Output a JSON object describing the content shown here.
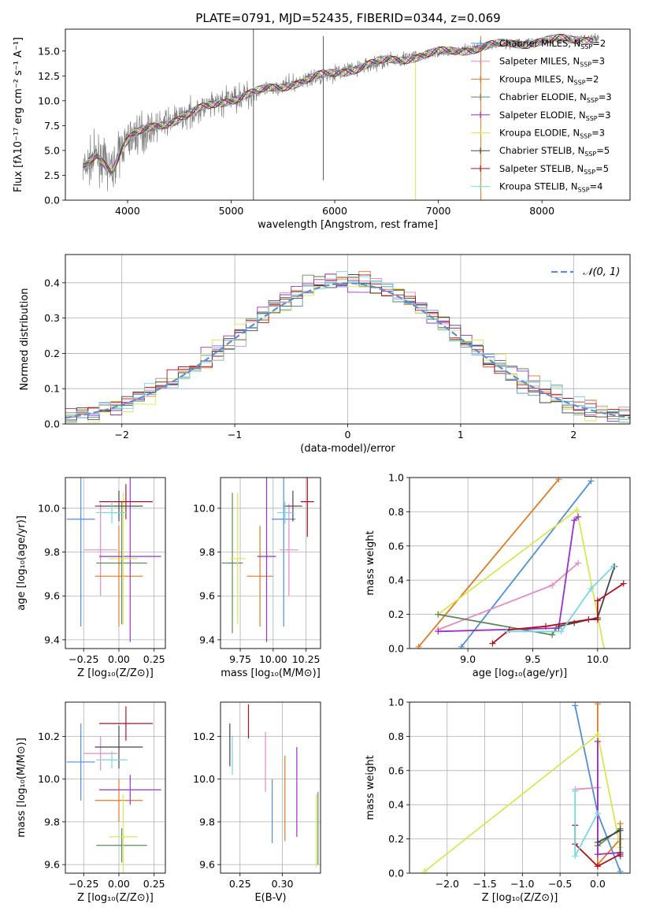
{
  "chart_data": [
    {
      "type": "line",
      "title": "PLATE=0791, MJD=52435, FIBERID=0344, z=0.069",
      "xlabel": "wavelength [Angstrom, rest frame]",
      "ylabel": "Flux [fλ10⁻¹⁷ erg cm⁻² s⁻¹ A⁻¹]",
      "xlim": [
        3400,
        8850
      ],
      "ylim": [
        0,
        17.2
      ],
      "xticks": [
        "4000",
        "5000",
        "6000",
        "7000",
        "8000"
      ],
      "yticks": [
        "0.0",
        "2.5",
        "5.0",
        "7.5",
        "10.0",
        "12.5",
        "15.0"
      ],
      "spectrum_anchors": {
        "x": [
          3550,
          3700,
          3850,
          3950,
          4050,
          4300,
          4600,
          5000,
          5500,
          6000,
          6500,
          7000,
          7500,
          8000,
          8500
        ],
        "y": [
          2.8,
          4.5,
          3.0,
          5.5,
          6.5,
          7.5,
          8.7,
          10.2,
          11.5,
          12.8,
          14.0,
          14.8,
          15.5,
          16.0,
          16.3
        ]
      },
      "legend": [
        {
          "main": "Chabrier MILES, N",
          "sub": "SSP",
          "tail": "=2",
          "color": "#4f8fd6"
        },
        {
          "main": "Salpeter MILES, N",
          "sub": "SSP",
          "tail": "=3",
          "color": "#e68ac3"
        },
        {
          "main": "Kroupa MILES, N",
          "sub": "SSP",
          "tail": "=2",
          "color": "#e07a22"
        },
        {
          "main": "Chabrier ELODIE, N",
          "sub": "SSP",
          "tail": "=3",
          "color": "#5a8a5a"
        },
        {
          "main": "Salpeter ELODIE, N",
          "sub": "SSP",
          "tail": "=3",
          "color": "#9b30c8"
        },
        {
          "main": "Kroupa ELODIE, N",
          "sub": "SSP",
          "tail": "=3",
          "color": "#d8e850"
        },
        {
          "main": "Chabrier STELIB, N",
          "sub": "SSP",
          "tail": "=5",
          "color": "#444444"
        },
        {
          "main": "Salpeter STELIB, N",
          "sub": "SSP",
          "tail": "=5",
          "color": "#b01020"
        },
        {
          "main": "Kroupa STELIB, N",
          "sub": "SSP",
          "tail": "=4",
          "color": "#78d8e0"
        }
      ]
    },
    {
      "type": "line",
      "xlabel": "(data-model)/error",
      "ylabel": "Normed distribution",
      "xlim": [
        -2.5,
        2.5
      ],
      "ylim": [
        0,
        0.48
      ],
      "xticks": [
        "−2",
        "−1",
        "0",
        "1",
        "2"
      ],
      "yticks": [
        "0.0",
        "0.1",
        "0.2",
        "0.3",
        "0.4"
      ],
      "legend_label": "𝒩(0, 1)",
      "gaussian_color": "#5b8fd4",
      "series_colors": [
        "#4f8fd6",
        "#e68ac3",
        "#e07a22",
        "#5a8a5a",
        "#9b30c8",
        "#d8e850",
        "#444444",
        "#b01020",
        "#78d8e0"
      ]
    },
    {
      "type": "scatter",
      "xlabel": "Z [log₁₀(Z/Z⊙)]",
      "ylabel": "age  [log₁₀(age/yr)]",
      "xlim": [
        -0.38,
        0.33
      ],
      "ylim": [
        9.36,
        10.14
      ],
      "xticks": [
        "−0.25",
        "0.00",
        "0.25"
      ],
      "yticks": [
        "9.4",
        "9.6",
        "9.8",
        "10.0"
      ],
      "points": [
        {
          "x": -0.27,
          "y": 9.95,
          "xerr": 0.1,
          "yerr": 0.49,
          "color": "#4f8fd6"
        },
        {
          "x": -0.13,
          "y": 9.81,
          "xerr": 0.12,
          "yerr": 0.21,
          "color": "#e68ac3"
        },
        {
          "x": 0.0,
          "y": 9.69,
          "xerr": 0.17,
          "yerr": 0.23,
          "color": "#e07a22"
        },
        {
          "x": 0.02,
          "y": 9.75,
          "xerr": 0.18,
          "yerr": 0.28,
          "color": "#5a8a5a"
        },
        {
          "x": 0.08,
          "y": 9.78,
          "xerr": 0.22,
          "yerr": 0.39,
          "color": "#9b30c8"
        },
        {
          "x": 0.03,
          "y": 9.77,
          "xerr": 0.1,
          "yerr": 0.3,
          "color": "#d8e850"
        },
        {
          "x": 0.0,
          "y": 10.01,
          "xerr": 0.17,
          "yerr": 0.07,
          "color": "#444444"
        },
        {
          "x": 0.05,
          "y": 10.03,
          "xerr": 0.19,
          "yerr": 0.08,
          "color": "#b01020"
        },
        {
          "x": -0.05,
          "y": 9.98,
          "xerr": 0.11,
          "yerr": 0.05,
          "color": "#78d8e0"
        }
      ]
    },
    {
      "type": "scatter",
      "xlabel": "mass [log₁₀(M/M⊙)]",
      "ylabel": "",
      "xlim": [
        9.6,
        10.36
      ],
      "ylim": [
        9.36,
        10.14
      ],
      "xticks": [
        "9.75",
        "10.00",
        "10.25"
      ],
      "yticks": [
        "9.4",
        "9.6",
        "9.8",
        "10.0"
      ],
      "points": [
        {
          "x": 10.08,
          "y": 9.95,
          "xerr": 0.09,
          "yerr": 0.49,
          "color": "#4f8fd6"
        },
        {
          "x": 10.12,
          "y": 9.81,
          "xerr": 0.07,
          "yerr": 0.21,
          "color": "#e68ac3"
        },
        {
          "x": 9.9,
          "y": 9.69,
          "xerr": 0.1,
          "yerr": 0.23,
          "color": "#e07a22"
        },
        {
          "x": 9.69,
          "y": 9.75,
          "xerr": 0.08,
          "yerr": 0.32,
          "color": "#5a8a5a"
        },
        {
          "x": 9.95,
          "y": 9.78,
          "xerr": 0.07,
          "yerr": 0.39,
          "color": "#9b30c8"
        },
        {
          "x": 9.73,
          "y": 9.77,
          "xerr": 0.06,
          "yerr": 0.3,
          "color": "#d8e850"
        },
        {
          "x": 10.15,
          "y": 10.01,
          "xerr": 0.07,
          "yerr": 0.07,
          "color": "#444444"
        },
        {
          "x": 10.26,
          "y": 10.03,
          "xerr": 0.05,
          "yerr": 0.16,
          "color": "#b01020"
        },
        {
          "x": 10.09,
          "y": 9.98,
          "xerr": 0.06,
          "yerr": 0.05,
          "color": "#78d8e0"
        }
      ]
    },
    {
      "type": "line",
      "xlabel": "age  [log₁₀(age/yr)]",
      "ylabel": "mass weight",
      "xlim": [
        8.55,
        10.25
      ],
      "ylim": [
        0,
        1
      ],
      "xticks": [
        "9.0",
        "9.5",
        "10.0"
      ],
      "yticks": [
        "0.0",
        "0.2",
        "0.4",
        "0.6",
        "0.8",
        "1.0"
      ],
      "series": [
        {
          "color": "#e07a22",
          "x": [
            8.62,
            9.7
          ],
          "y": [
            0.01,
            0.99
          ]
        },
        {
          "color": "#4f8fd6",
          "x": [
            8.95,
            9.95
          ],
          "y": [
            0.01,
            0.98
          ]
        },
        {
          "color": "#d8e850",
          "x": [
            8.77,
            9.84,
            10.05
          ],
          "y": [
            0.2,
            0.81,
            0.0
          ]
        },
        {
          "color": "#e68ac3",
          "x": [
            8.77,
            9.65,
            9.85
          ],
          "y": [
            0.11,
            0.37,
            0.5
          ]
        },
        {
          "color": "#5a8a5a",
          "x": [
            8.77,
            9.65,
            9.68
          ],
          "y": [
            0.2,
            0.08,
            0.12
          ]
        },
        {
          "color": "#9b30c8",
          "x": [
            8.77,
            9.7,
            9.82,
            9.85
          ],
          "y": [
            0.1,
            0.12,
            0.75,
            0.77
          ]
        },
        {
          "color": "#444444",
          "x": [
            9.7,
            9.82,
            10.0,
            10.13
          ],
          "y": [
            0.13,
            0.15,
            0.18,
            0.48
          ]
        },
        {
          "color": "#b01020",
          "x": [
            9.19,
            9.32,
            9.6,
            9.93,
            10.0,
            10.0,
            10.2
          ],
          "y": [
            0.03,
            0.11,
            0.13,
            0.17,
            0.17,
            0.28,
            0.38
          ]
        },
        {
          "color": "#78d8e0",
          "x": [
            9.3,
            9.72,
            9.95,
            10.12
          ],
          "y": [
            0.1,
            0.1,
            0.35,
            0.48
          ]
        }
      ]
    },
    {
      "type": "scatter",
      "xlabel": "Z [log₁₀(Z/Z⊙)]",
      "ylabel": "mass [log₁₀(M/M⊙)]",
      "xlim": [
        -0.38,
        0.33
      ],
      "ylim": [
        9.56,
        10.36
      ],
      "xticks": [
        "−0.25",
        "0.00",
        "0.25"
      ],
      "yticks": [
        "9.6",
        "9.8",
        "10.0",
        "10.2"
      ],
      "points": [
        {
          "x": -0.27,
          "y": 10.08,
          "xerr": 0.1,
          "yerr": 0.18,
          "color": "#4f8fd6"
        },
        {
          "x": -0.13,
          "y": 10.12,
          "xerr": 0.12,
          "yerr": 0.08,
          "color": "#e68ac3"
        },
        {
          "x": 0.0,
          "y": 9.9,
          "xerr": 0.17,
          "yerr": 0.1,
          "color": "#e07a22"
        },
        {
          "x": 0.02,
          "y": 9.69,
          "xerr": 0.18,
          "yerr": 0.08,
          "color": "#5a8a5a"
        },
        {
          "x": 0.08,
          "y": 9.95,
          "xerr": 0.22,
          "yerr": 0.07,
          "color": "#9b30c8"
        },
        {
          "x": 0.03,
          "y": 9.73,
          "xerr": 0.1,
          "yerr": 0.2,
          "color": "#d8e850"
        },
        {
          "x": 0.0,
          "y": 10.15,
          "xerr": 0.17,
          "yerr": 0.1,
          "color": "#444444"
        },
        {
          "x": 0.05,
          "y": 10.26,
          "xerr": 0.19,
          "yerr": 0.08,
          "color": "#b01020"
        },
        {
          "x": -0.05,
          "y": 10.09,
          "xerr": 0.11,
          "yerr": 0.04,
          "color": "#78d8e0"
        }
      ]
    },
    {
      "type": "scatter",
      "xlabel": "E(B-V)",
      "ylabel": "",
      "xlim": [
        0.227,
        0.345
      ],
      "ylim": [
        9.56,
        10.36
      ],
      "xticks": [
        "0.25",
        "0.30"
      ],
      "yticks": [
        "9.6",
        "9.8",
        "10.0",
        "10.2"
      ],
      "points": [
        {
          "x": 0.288,
          "y": 9.85,
          "yerr": 0.15,
          "color": "#4f8fd6"
        },
        {
          "x": 0.28,
          "y": 10.08,
          "yerr": 0.14,
          "color": "#e68ac3"
        },
        {
          "x": 0.303,
          "y": 9.91,
          "yerr": 0.2,
          "color": "#e07a22"
        },
        {
          "x": 0.342,
          "y": 9.77,
          "yerr": 0.17,
          "color": "#5a8a5a"
        },
        {
          "x": 0.317,
          "y": 9.94,
          "yerr": 0.21,
          "color": "#9b30c8"
        },
        {
          "x": 0.34,
          "y": 9.76,
          "yerr": 0.17,
          "color": "#d8e850"
        },
        {
          "x": 0.238,
          "y": 10.16,
          "yerr": 0.1,
          "color": "#444444"
        },
        {
          "x": 0.26,
          "y": 10.27,
          "yerr": 0.08,
          "color": "#b01020"
        },
        {
          "x": 0.241,
          "y": 10.11,
          "yerr": 0.09,
          "color": "#78d8e0"
        }
      ]
    },
    {
      "type": "line",
      "xlabel": "Z [log₁₀(Z/Z⊙)]",
      "ylabel": "mass weight",
      "xlim": [
        -2.5,
        0.43
      ],
      "ylim": [
        0,
        1
      ],
      "xticks": [
        "−2.0",
        "−1.5",
        "−1.0",
        "−0.5",
        "0.0"
      ],
      "yticks": [
        "0.0",
        "0.2",
        "0.4",
        "0.6",
        "0.8",
        "1.0"
      ],
      "series": [
        {
          "color": "#4f8fd6",
          "x": [
            -0.3,
            0.0,
            0.3
          ],
          "y": [
            0.98,
            0.35,
            0.01
          ]
        },
        {
          "color": "#e07a22",
          "x": [
            0.0,
            0.0,
            0.3,
            0.3
          ],
          "y": [
            0.99,
            0.05,
            0.2,
            0.29
          ]
        },
        {
          "color": "#d8e850",
          "x": [
            -2.3,
            0.0,
            0.3
          ],
          "y": [
            0.01,
            0.81,
            0.15
          ]
        },
        {
          "color": "#e68ac3",
          "x": [
            -0.3,
            0.0,
            0.0
          ],
          "y": [
            0.49,
            0.5,
            0.11
          ]
        },
        {
          "color": "#5a8a5a",
          "x": [
            0.0,
            0.3,
            0.3
          ],
          "y": [
            0.16,
            0.26,
            0.1
          ]
        },
        {
          "color": "#9b30c8",
          "x": [
            0.0,
            0.0,
            0.3,
            0.3
          ],
          "y": [
            0.77,
            0.11,
            0.12,
            0.1
          ]
        },
        {
          "color": "#444444",
          "x": [
            0.0,
            0.3,
            0.3
          ],
          "y": [
            0.18,
            0.25,
            0.12
          ]
        },
        {
          "color": "#b01020",
          "x": [
            -0.3,
            -0.3,
            0.0,
            0.3
          ],
          "y": [
            0.28,
            0.17,
            0.04,
            0.11
          ]
        },
        {
          "color": "#78d8e0",
          "x": [
            -0.3,
            -0.3,
            0.0
          ],
          "y": [
            0.48,
            0.1,
            0.35
          ]
        }
      ]
    }
  ]
}
